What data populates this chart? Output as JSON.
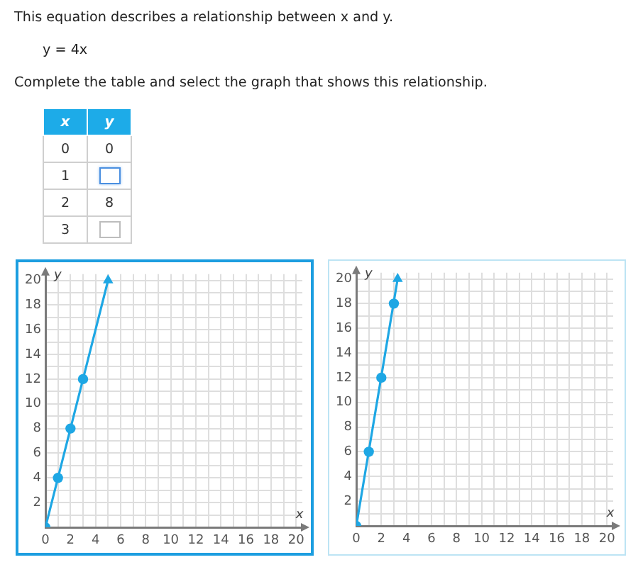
{
  "chart_data": [
    {
      "type": "heatmap",
      "title": "This equation describes a relationship between x and y.",
      "annotations": [
        "y = 4x",
        "Complete the table and select the graph that shows this relationship."
      ],
      "ylabel": "x",
      "categories": [
        "y"
      ],
      "y_categories": [
        "0",
        "1",
        "2",
        "3"
      ],
      "cells": [
        [
          0
        ],
        [
          null
        ],
        [
          8
        ],
        [
          null
        ]
      ],
      "data_labels": true
    },
    {
      "type": "line",
      "xlabel": "x",
      "ylabel": "y",
      "xlim": [
        0,
        20.5
      ],
      "ylim": [
        0,
        20.5
      ],
      "xticks": [
        0,
        {
          "value": 1,
          "label": null
        },
        2,
        {
          "value": 3,
          "label": null
        },
        4,
        {
          "value": 5,
          "label": null
        },
        6,
        {
          "value": 7,
          "label": null
        },
        8,
        {
          "value": 9,
          "label": null
        },
        10,
        {
          "value": 11,
          "label": null
        },
        12,
        {
          "value": 13,
          "label": null
        },
        14,
        {
          "value": 15,
          "label": null
        },
        16,
        {
          "value": 17,
          "label": null
        },
        18,
        {
          "value": 19,
          "label": null
        },
        20
      ],
      "yticks": [
        {
          "value": 0,
          "label": null
        },
        {
          "value": 1,
          "label": null
        },
        2,
        {
          "value": 3,
          "label": null
        },
        4,
        {
          "value": 5,
          "label": null
        },
        6,
        {
          "value": 7,
          "label": null
        },
        8,
        {
          "value": 9,
          "label": null
        },
        10,
        {
          "value": 11,
          "label": null
        },
        12,
        {
          "value": 13,
          "label": null
        },
        14,
        {
          "value": 15,
          "label": null
        },
        16,
        {
          "value": 17,
          "label": null
        },
        18,
        {
          "value": 19,
          "label": null
        },
        20
      ],
      "grid": true,
      "series": [
        {
          "type": "line",
          "color": "#1ea7e4",
          "x": [
            0,
            5
          ],
          "values": [
            0,
            20
          ],
          "marker": "none"
        },
        {
          "type": "scatter",
          "color": "#1ea7e4",
          "x": [
            0,
            1,
            2,
            3
          ],
          "values": [
            0,
            4,
            8,
            12
          ],
          "marker": "circle"
        },
        {
          "type": "scatter",
          "color": "#1ea7e4",
          "x": [
            5
          ],
          "values": [
            20
          ],
          "marker": "triangle"
        }
      ]
    },
    {
      "type": "line",
      "xlabel": "x",
      "ylabel": "y",
      "xlim": [
        0,
        20.5
      ],
      "ylim": [
        0,
        20.5
      ],
      "xticks": [
        0,
        {
          "value": 1,
          "label": null
        },
        2,
        {
          "value": 3,
          "label": null
        },
        4,
        {
          "value": 5,
          "label": null
        },
        6,
        {
          "value": 7,
          "label": null
        },
        8,
        {
          "value": 9,
          "label": null
        },
        10,
        {
          "value": 11,
          "label": null
        },
        12,
        {
          "value": 13,
          "label": null
        },
        14,
        {
          "value": 15,
          "label": null
        },
        16,
        {
          "value": 17,
          "label": null
        },
        18,
        {
          "value": 19,
          "label": null
        },
        20
      ],
      "yticks": [
        {
          "value": 0,
          "label": null
        },
        {
          "value": 1,
          "label": null
        },
        2,
        {
          "value": 3,
          "label": null
        },
        4,
        {
          "value": 5,
          "label": null
        },
        6,
        {
          "value": 7,
          "label": null
        },
        8,
        {
          "value": 9,
          "label": null
        },
        10,
        {
          "value": 11,
          "label": null
        },
        12,
        {
          "value": 13,
          "label": null
        },
        14,
        {
          "value": 15,
          "label": null
        },
        16,
        {
          "value": 17,
          "label": null
        },
        18,
        {
          "value": 19,
          "label": null
        },
        20
      ],
      "grid": true,
      "series": [
        {
          "type": "line",
          "color": "#1ea7e4",
          "x": [
            0,
            3.3
          ],
          "values": [
            0,
            20
          ],
          "marker": "none"
        },
        {
          "type": "scatter",
          "color": "#1ea7e4",
          "x": [
            0,
            1,
            2,
            3
          ],
          "values": [
            0,
            6,
            12,
            18
          ],
          "marker": "circle"
        },
        {
          "type": "scatter",
          "color": "#1ea7e4",
          "x": [
            3.3
          ],
          "values": [
            20
          ],
          "marker": "triangle"
        }
      ]
    }
  ]
}
